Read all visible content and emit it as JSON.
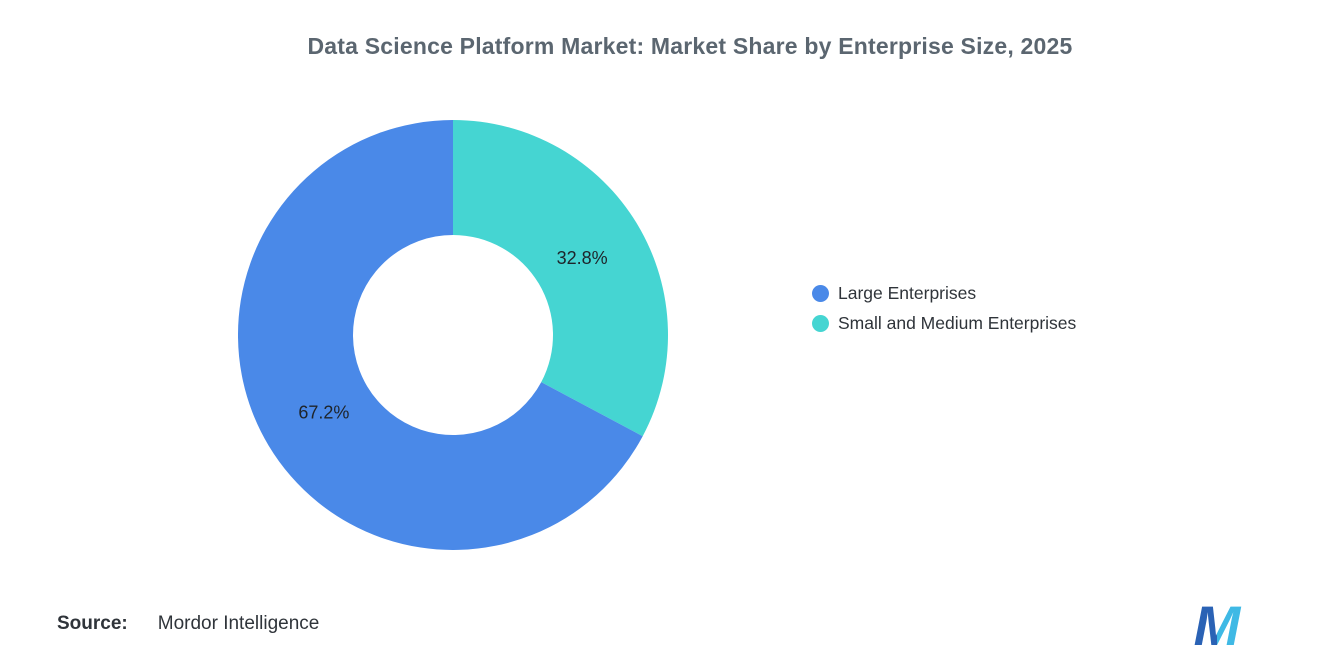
{
  "title": "Data Science Platform Market: Market Share by Enterprise Size, 2025",
  "source": {
    "label": "Source:",
    "value": "Mordor Intelligence"
  },
  "logo": {
    "letter": "M",
    "left_color": "#2A62B5",
    "right_color": "#3FB9E5"
  },
  "chart_data": {
    "type": "pie",
    "subtype": "donut",
    "title": "Data Science Platform Market: Market Share by Enterprise Size, 2025",
    "unit": "%",
    "start_angle_deg": 0,
    "direction": "clockwise",
    "inner_radius_ratio": 0.465,
    "legend_position": "right",
    "grid": false,
    "data_label_color": "#1e242a",
    "slices": [
      {
        "name": "Large Enterprises",
        "value": 67.2,
        "label": "67.2%",
        "color": "#4A89E8"
      },
      {
        "name": "Small and Medium Enterprises",
        "value": 32.8,
        "label": "32.8%",
        "color": "#45D5D2"
      }
    ]
  }
}
